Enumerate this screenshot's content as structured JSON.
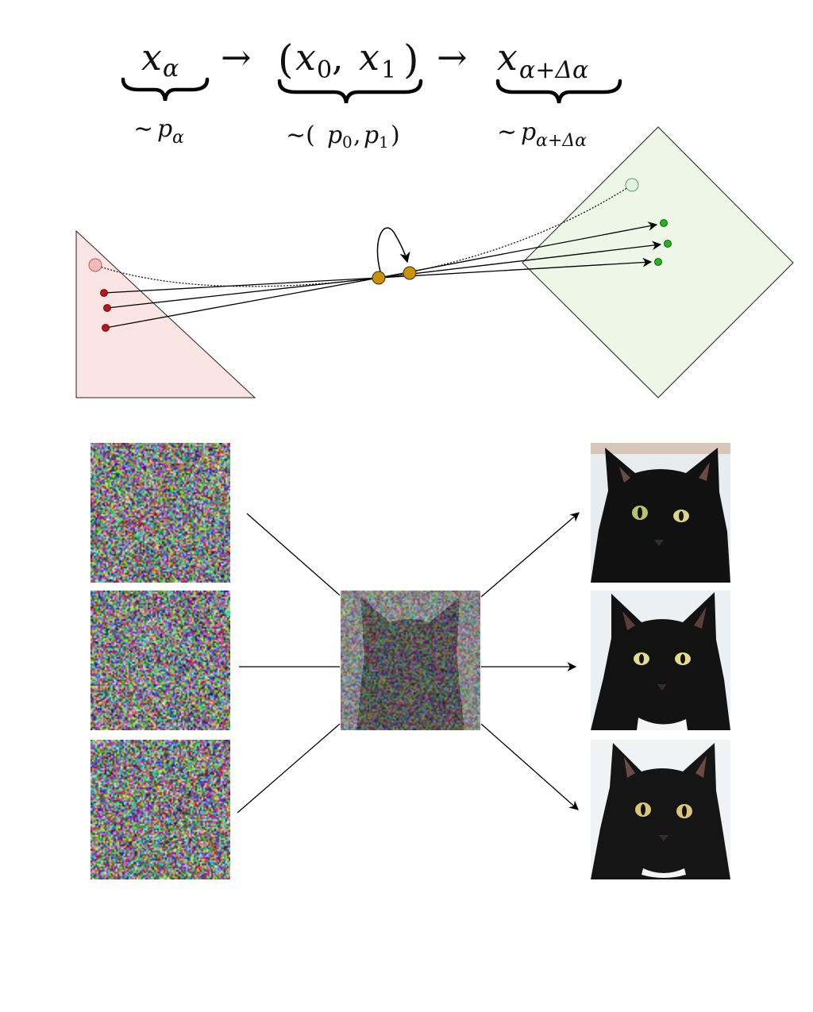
{
  "equation": {
    "term_alpha": {
      "base": "x",
      "sub": "α",
      "under": "∼",
      "under_base": "p",
      "under_sub": "α"
    },
    "arrow_1": "→",
    "term_pair": {
      "text_open": "(",
      "base0": "x",
      "sub0": "0",
      "comma": ", ",
      "base1": "x",
      "sub1": "1",
      "text_close": ")",
      "under": "∼(",
      "under_p0": "p",
      "under_sub0": "0",
      "under_comma": ",",
      "under_p1": "p",
      "under_sub1": "1",
      "under_close": ")"
    },
    "arrow_2": "→",
    "term_next": {
      "base": "x",
      "sub": "α+Δα",
      "under": "∼",
      "under_base": "p",
      "under_sub": "α+Δα"
    }
  },
  "colors": {
    "source_fill": "#fbe4e4",
    "source_point": "#c0141b",
    "source_ghost": "#f5b9b9",
    "target_fill": "#eef6e8",
    "target_point": "#1fb61f",
    "target_ghost": "#e3f3e3",
    "middle_point": "#c9920e"
  },
  "source_points": 3,
  "target_points": 3,
  "noise_tiles": 3,
  "cat_tiles": 3,
  "icons": [
    "noise-image",
    "noisy-cat-image",
    "cat-image"
  ]
}
